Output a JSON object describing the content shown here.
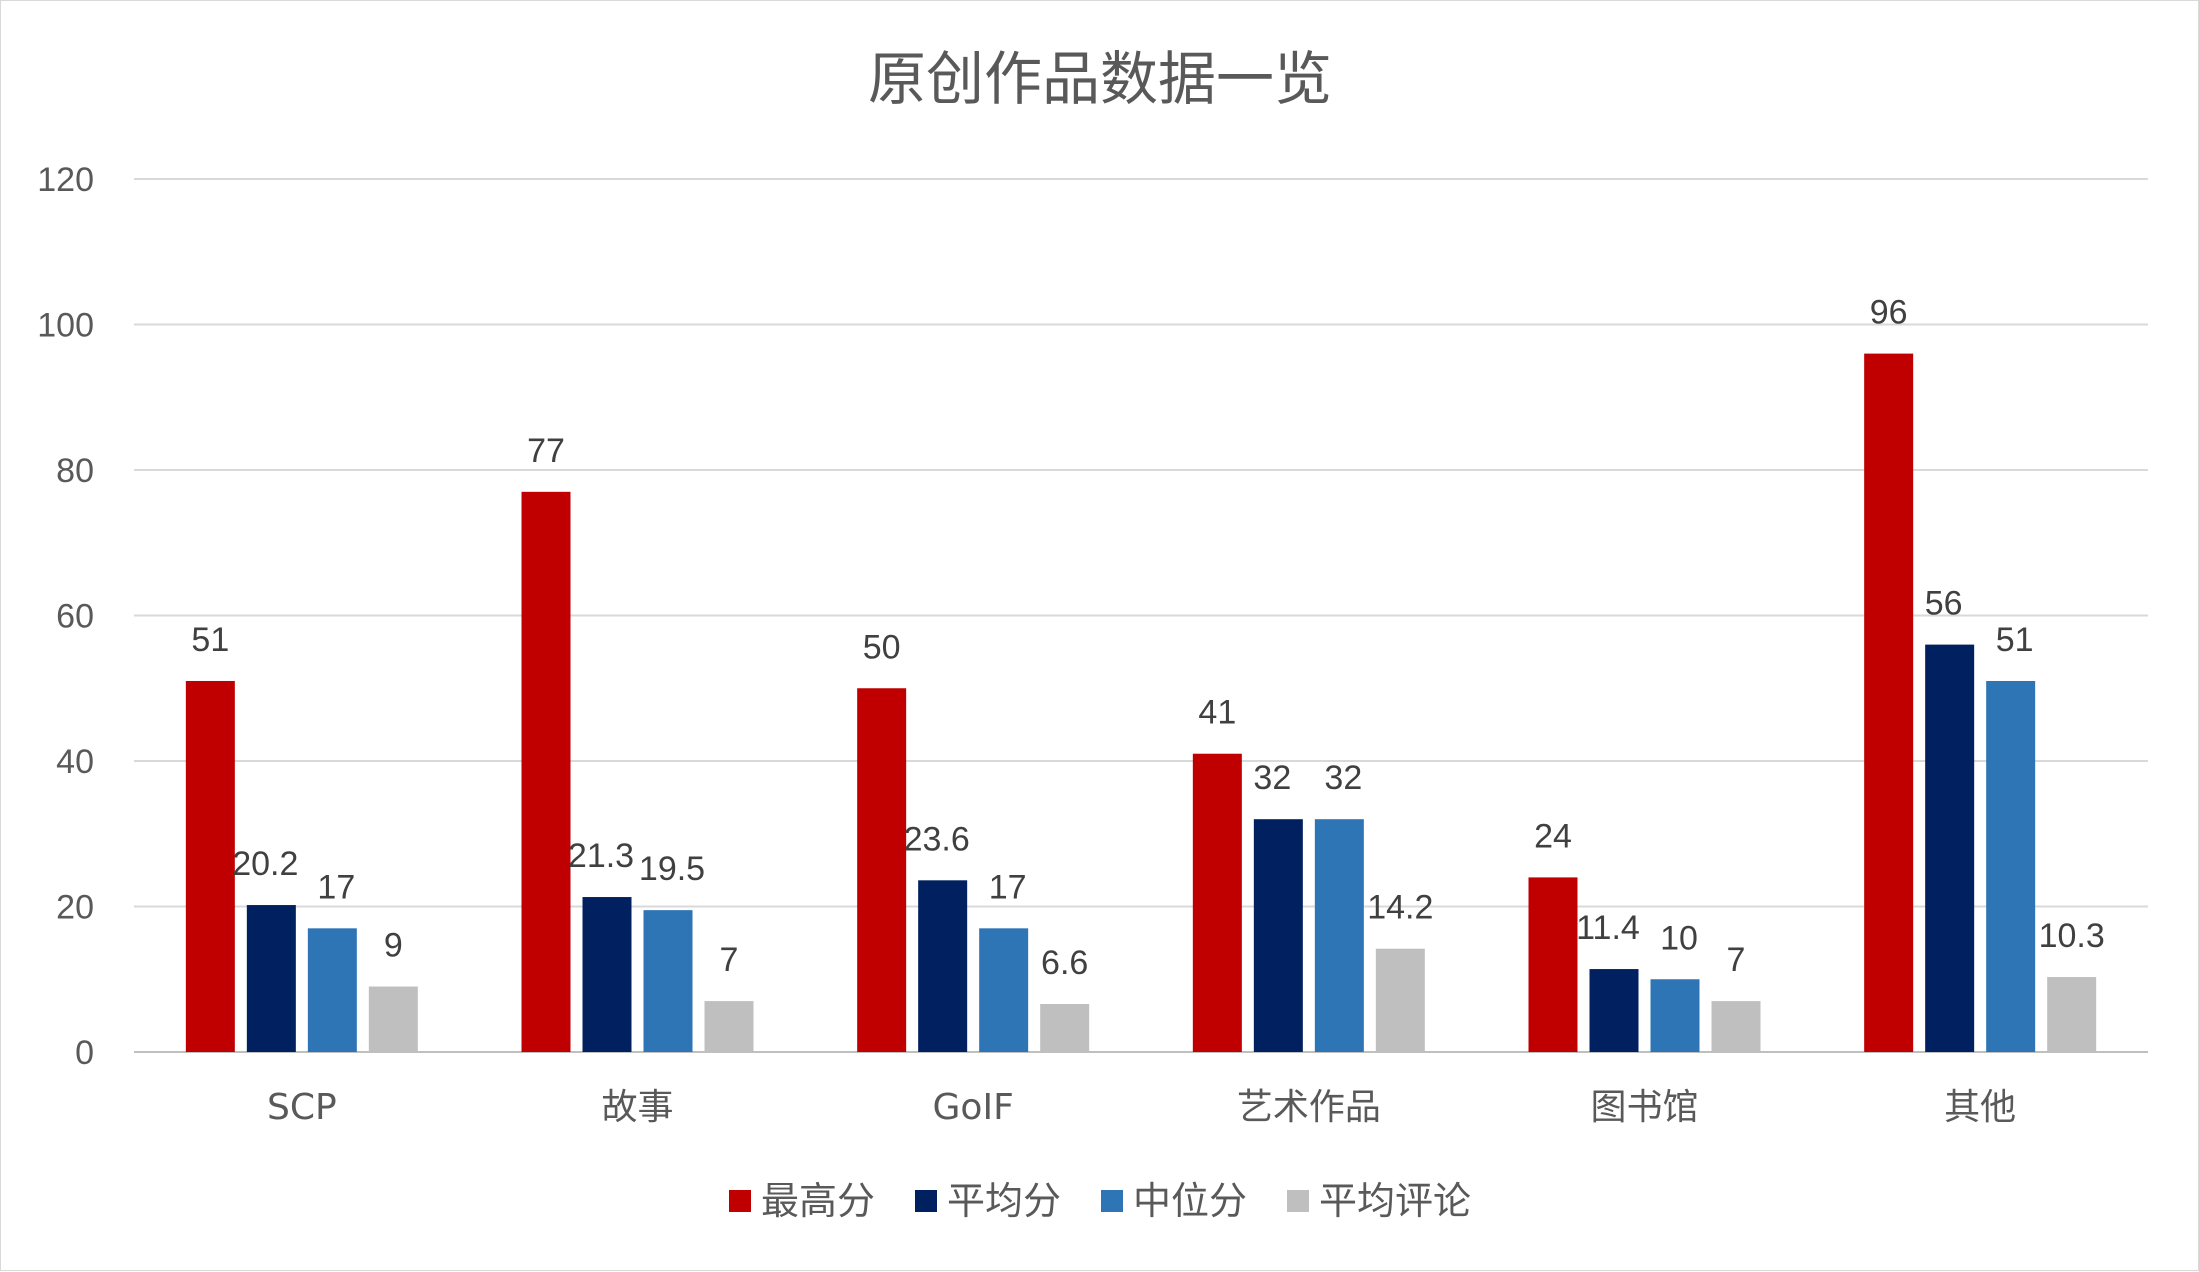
{
  "chart_data": {
    "type": "bar",
    "title": "原创作品数据一览",
    "categories": [
      "SCP",
      "故事",
      "GoIF",
      "艺术作品",
      "图书馆",
      "其他"
    ],
    "series": [
      {
        "name": "最高分",
        "color": "#C00000",
        "values": [
          51,
          77,
          50,
          41,
          24,
          96
        ]
      },
      {
        "name": "平均分",
        "color": "#002060",
        "values": [
          20.2,
          21.3,
          23.6,
          32,
          11.4,
          56
        ]
      },
      {
        "name": "中位分",
        "color": "#2E75B6",
        "values": [
          17,
          19.5,
          17,
          32,
          10,
          51
        ]
      },
      {
        "name": "平均评论",
        "color": "#BFBFBF",
        "values": [
          9,
          7,
          6.6,
          14.2,
          7,
          10.3
        ]
      }
    ],
    "ylim": [
      0,
      120
    ],
    "yticks": [
      0,
      20,
      40,
      60,
      80,
      100,
      120
    ],
    "xlabel": "",
    "ylabel": "",
    "grid": true,
    "legend": "bottom",
    "data_labels": true
  }
}
